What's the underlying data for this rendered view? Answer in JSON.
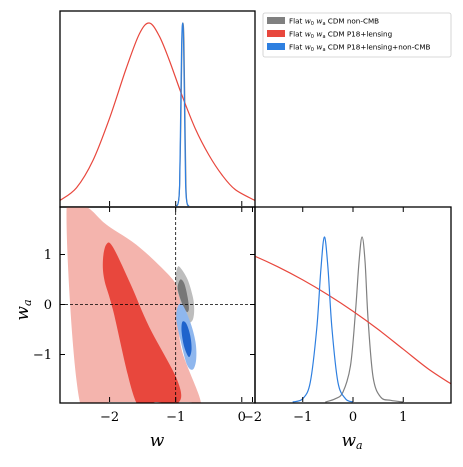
{
  "chart_data": {
    "type": "triangle_corner_plot",
    "parameters": [
      "w",
      "w_a"
    ],
    "axis_labels": {
      "x_left": "w",
      "y_left": "w",
      "y_left_sub": "a",
      "x_right": "w",
      "x_right_sub": "a"
    },
    "ranges": {
      "w": [
        -2.75,
        0.2
      ],
      "w_a": [
        -1.95,
        1.95
      ]
    },
    "ticks": {
      "w": [
        -2,
        -1,
        0
      ],
      "w_labels": [
        "−2",
        "−1",
        "0"
      ],
      "w_a": [
        -1,
        0,
        1
      ],
      "w_a_labels": [
        "−1",
        "0",
        "1"
      ],
      "w_a_bottom": [
        -2,
        -1,
        0,
        1
      ],
      "w_a_bottom_labels": [
        "−2",
        "−1",
        "0",
        "1"
      ]
    },
    "reference_lines": {
      "w": -1,
      "w_a": 0
    },
    "legend": {
      "placement": "top-right",
      "entries": [
        {
          "prefix": "Flat ",
          "math_w": "w",
          "math_w_sub": "0",
          "math_wa": "w",
          "math_wa_sub": "a",
          "suffix": "CDM non-CMB",
          "color": "#808080"
        },
        {
          "prefix": "Flat ",
          "math_w": "w",
          "math_w_sub": "0",
          "math_wa": "w",
          "math_wa_sub": "a",
          "suffix": "CDM P18+lensing",
          "color": "#e8473d"
        },
        {
          "prefix": "Flat ",
          "math_w": "w",
          "math_w_sub": "0",
          "math_wa": "w",
          "math_wa_sub": "a",
          "suffix": "CDM P18+lensing+non-CMB",
          "color": "#2e7fe0"
        }
      ]
    },
    "series": [
      {
        "name": "Flat w0 wa CDM non-CMB",
        "color": "#808080",
        "fill_inner": "#777777",
        "fill_outer": "#bdbdbd",
        "w_marginal": {
          "x": [
            -0.99,
            -0.96,
            -0.94,
            -0.92,
            -0.905,
            -0.89,
            -0.875,
            -0.86,
            -0.845,
            -0.83,
            -0.81
          ],
          "y": [
            0,
            0.02,
            0.12,
            0.5,
            0.9,
            1.0,
            0.9,
            0.5,
            0.12,
            0.02,
            0
          ]
        },
        "wa_marginal": {
          "x": [
            -0.55,
            -0.35,
            -0.2,
            -0.05,
            0.05,
            0.12,
            0.18,
            0.24,
            0.3,
            0.4,
            0.55,
            0.75,
            1.0
          ],
          "y": [
            0,
            0.02,
            0.06,
            0.22,
            0.55,
            0.85,
            1.0,
            0.85,
            0.5,
            0.15,
            0.03,
            0.01,
            0
          ]
        },
        "contour_outer": {
          "w": [
            -1.0,
            -0.97,
            -0.92,
            -0.82,
            -0.74,
            -0.72,
            -0.74,
            -0.8,
            -0.88,
            -0.95,
            -0.99
          ],
          "wa": [
            0.55,
            0.75,
            0.72,
            0.5,
            0.15,
            -0.1,
            -0.3,
            -0.35,
            -0.15,
            0.15,
            0.4
          ]
        },
        "contour_inner": {
          "w": [
            -0.97,
            -0.93,
            -0.87,
            -0.82,
            -0.8,
            -0.83,
            -0.89,
            -0.95
          ],
          "wa": [
            0.35,
            0.5,
            0.42,
            0.15,
            -0.08,
            -0.15,
            -0.02,
            0.2
          ]
        }
      },
      {
        "name": "Flat w0 wa CDM P18+lensing",
        "color": "#e8473d",
        "fill_inner": "#e8473d",
        "fill_outer": "#f4b4ad",
        "w_marginal": {
          "x": [
            -2.75,
            -2.5,
            -2.25,
            -2.0,
            -1.75,
            -1.55,
            -1.4,
            -1.25,
            -1.1,
            -0.9,
            -0.7,
            -0.5,
            -0.3,
            -0.1,
            0.2
          ],
          "y": [
            0.03,
            0.1,
            0.25,
            0.48,
            0.75,
            0.94,
            1.0,
            0.93,
            0.8,
            0.6,
            0.42,
            0.28,
            0.17,
            0.09,
            0.03
          ]
        },
        "wa_marginal": {
          "x": [
            -3.0,
            -2.5,
            -2.0,
            -1.5,
            -1.0,
            -0.5,
            0.0,
            0.5,
            1.0,
            1.5,
            2.0
          ],
          "y": [
            1.0,
            0.95,
            0.89,
            0.82,
            0.74,
            0.65,
            0.55,
            0.44,
            0.32,
            0.2,
            0.1
          ]
        },
        "contour_outer": {
          "w": [
            -2.65,
            -2.35,
            -2.05,
            -1.6,
            -1.2,
            -0.98,
            -0.9,
            -0.95,
            -0.9,
            -0.62,
            -0.8,
            -1.3,
            -1.6,
            -2.0,
            -2.45
          ],
          "wa": [
            1.95,
            1.95,
            1.6,
            1.2,
            0.72,
            0.38,
            0.05,
            -0.35,
            -0.95,
            -1.95,
            -1.95,
            -1.95,
            -1.95,
            -1.95,
            -1.95
          ]
        },
        "contour_inner": {
          "w": [
            -1.95,
            -2.05,
            -2.1,
            -2.08,
            -1.95,
            -1.6,
            -1.3,
            -0.95,
            -0.98,
            -1.4,
            -1.68
          ],
          "wa": [
            1.15,
            1.2,
            0.9,
            0.5,
            -0.1,
            -1.95,
            -1.95,
            -1.95,
            -1.5,
            -0.45,
            0.4
          ]
        }
      },
      {
        "name": "Flat w0 wa CDM P18+lensing+non-CMB",
        "color": "#2e7fe0",
        "fill_inner": "#1f63cc",
        "fill_outer": "#8fb7ee",
        "w_marginal": {
          "x": [
            -0.99,
            -0.96,
            -0.94,
            -0.925,
            -0.91,
            -0.895,
            -0.88,
            -0.865,
            -0.85,
            -0.83,
            -0.8
          ],
          "y": [
            0,
            0.02,
            0.12,
            0.5,
            0.88,
            1.0,
            0.88,
            0.5,
            0.12,
            0.02,
            0
          ]
        },
        "wa_marginal": {
          "x": [
            -1.2,
            -1.0,
            -0.85,
            -0.72,
            -0.64,
            -0.57,
            -0.5,
            -0.42,
            -0.3,
            -0.15,
            0.0
          ],
          "y": [
            0,
            0.02,
            0.12,
            0.45,
            0.8,
            1.0,
            0.82,
            0.45,
            0.12,
            0.02,
            0
          ]
        },
        "contour_outer": {
          "w": [
            -0.97,
            -0.9,
            -0.78,
            -0.7,
            -0.69,
            -0.74,
            -0.83,
            -0.93,
            -0.99
          ],
          "wa": [
            -0.05,
            0.0,
            -0.35,
            -0.75,
            -1.1,
            -1.3,
            -1.2,
            -0.7,
            -0.3
          ]
        },
        "contour_inner": {
          "w": [
            -0.9,
            -0.84,
            -0.78,
            -0.76,
            -0.8,
            -0.87,
            -0.91
          ],
          "wa": [
            -0.35,
            -0.38,
            -0.62,
            -0.9,
            -1.05,
            -0.85,
            -0.55
          ]
        }
      }
    ]
  }
}
